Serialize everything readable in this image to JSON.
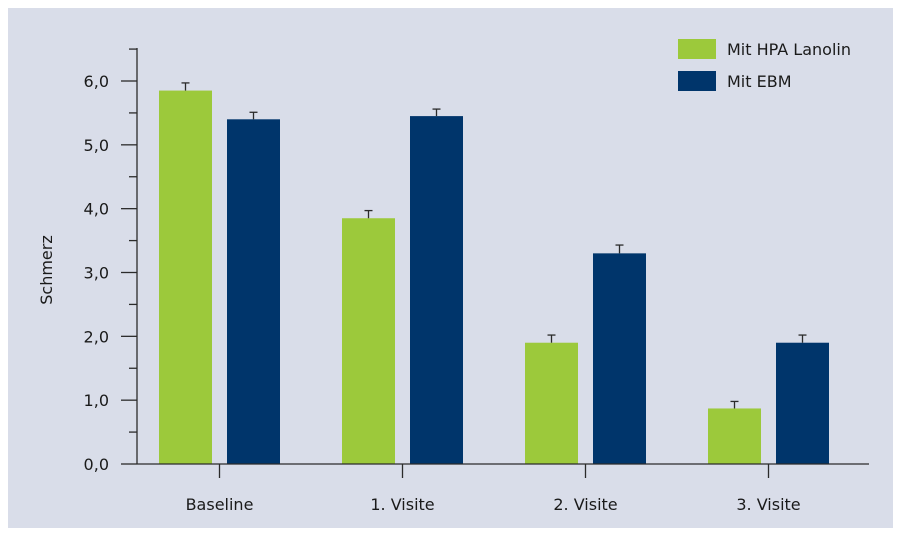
{
  "chart_data": {
    "type": "bar",
    "ylabel": "Schmerz",
    "xlabel": "",
    "ylim": [
      0,
      6.0
    ],
    "ytick_step": 1.0,
    "ytick_labels": [
      "0,0",
      "1,0",
      "2,0",
      "3,0",
      "4,0",
      "5,0",
      "6,0"
    ],
    "categories": [
      "Baseline",
      "1. Visite",
      "2. Visite",
      "3. Visite"
    ],
    "series": [
      {
        "name": "Mit HPA Lanolin",
        "color": "#9cc93b",
        "values": [
          5.85,
          3.85,
          1.9,
          0.87
        ],
        "errors": [
          0.12,
          0.12,
          0.12,
          0.11
        ]
      },
      {
        "name": "Mit EBM",
        "color": "#00356b",
        "values": [
          5.4,
          5.45,
          3.3,
          1.9
        ],
        "errors": [
          0.11,
          0.11,
          0.13,
          0.12
        ]
      }
    ],
    "legend_position": "top-right",
    "grid": false,
    "error_bar_color": "#2b2b2b",
    "axis_color": "#2b2b2b",
    "background_color": "#d9dde9"
  }
}
